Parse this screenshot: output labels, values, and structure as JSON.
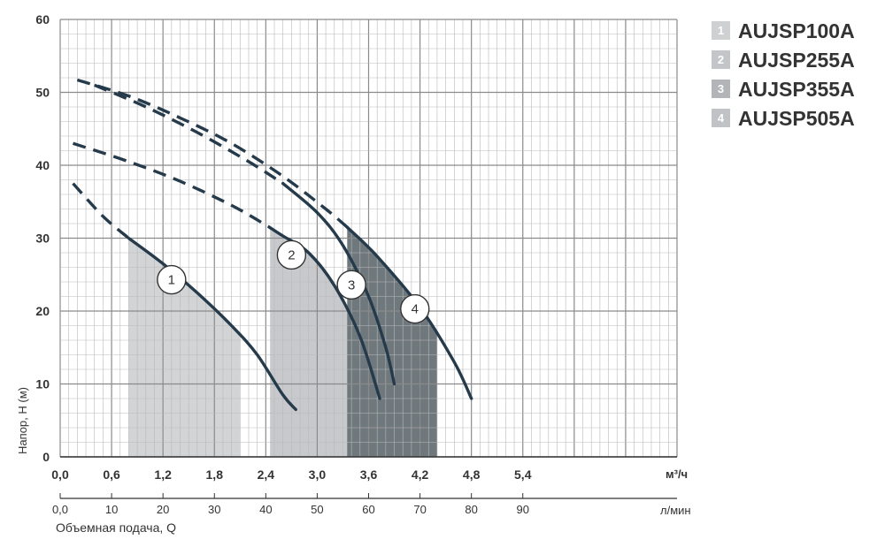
{
  "chart_data": {
    "type": "line",
    "x": {
      "unit": "м³/ч",
      "range": [
        0,
        7.2
      ],
      "ticks": [
        "0,0",
        "0,6",
        "1,2",
        "1,8",
        "2,4",
        "3,0",
        "3,6",
        "4,2",
        "4,8",
        "5,4"
      ]
    },
    "x2": {
      "unit": "л/мин",
      "range": [
        0,
        120
      ],
      "ticks": [
        "0,0",
        "10",
        "20",
        "30",
        "40",
        "50",
        "60",
        "70",
        "80",
        "90"
      ],
      "label": "Объемная подача, Q"
    },
    "y": {
      "label": "Напор, H (м)",
      "range": [
        0,
        60
      ],
      "ticks": [
        "0",
        "10",
        "20",
        "30",
        "40",
        "50",
        "60"
      ]
    },
    "grid": true,
    "legend_position": "right",
    "series": [
      {
        "name": "AUJSP100A",
        "num": "1",
        "points": [
          [
            0.15,
            37.5
          ],
          [
            0.5,
            33.0
          ],
          [
            0.8,
            30.0
          ],
          [
            1.2,
            26.5
          ],
          [
            1.6,
            22.5
          ],
          [
            2.0,
            18.0
          ],
          [
            2.3,
            14.0
          ],
          [
            2.6,
            8.5
          ],
          [
            2.75,
            6.5
          ]
        ],
        "dashed_until": 0.8,
        "band": [
          0.8,
          2.1
        ],
        "band_color": "#d2d4d6"
      },
      {
        "name": "AUJSP255A",
        "num": "2",
        "points": [
          [
            0.15,
            43.0
          ],
          [
            0.8,
            40.5
          ],
          [
            1.4,
            37.8
          ],
          [
            2.0,
            34.5
          ],
          [
            2.4,
            31.8
          ],
          [
            2.6,
            30.3
          ],
          [
            2.9,
            28.0
          ],
          [
            3.2,
            23.5
          ],
          [
            3.5,
            16.5
          ],
          [
            3.73,
            8.0
          ]
        ],
        "dashed_until": 2.45,
        "band": [
          2.45,
          3.75
        ],
        "band_color": "#c8c9cc"
      },
      {
        "name": "AUJSP355A",
        "num": "3",
        "points": [
          [
            0.4,
            51.0
          ],
          [
            1.0,
            48.0
          ],
          [
            1.6,
            44.5
          ],
          [
            2.2,
            40.5
          ],
          [
            2.6,
            37.5
          ],
          [
            3.0,
            33.5
          ],
          [
            3.3,
            29.0
          ],
          [
            3.6,
            22.0
          ],
          [
            3.8,
            15.0
          ],
          [
            3.9,
            10.0
          ]
        ],
        "dashed_until": 2.6,
        "band": [
          3.6,
          3.75
        ],
        "band_color": "#96989c"
      },
      {
        "name": "AUJSP505A",
        "num": "4",
        "points": [
          [
            0.2,
            51.7
          ],
          [
            0.8,
            49.5
          ],
          [
            1.4,
            46.5
          ],
          [
            2.0,
            43.0
          ],
          [
            2.6,
            38.5
          ],
          [
            3.1,
            34.0
          ],
          [
            3.35,
            31.5
          ],
          [
            3.7,
            27.5
          ],
          [
            4.2,
            20.5
          ],
          [
            4.6,
            13.0
          ],
          [
            4.8,
            8.0
          ]
        ],
        "dashed_until": 3.35,
        "band": [
          3.35,
          4.4
        ],
        "band_color": "#6f787d"
      }
    ]
  },
  "legend": [
    {
      "num": "1",
      "label": "AUJSP100A",
      "color": "#cfd0d2"
    },
    {
      "num": "2",
      "label": "AUJSP255A",
      "color": "#c4c5c8"
    },
    {
      "num": "3",
      "label": "AUJSP355A",
      "color": "#b2b4b7"
    },
    {
      "num": "4",
      "label": "AUJSP505A",
      "color": "#c0c2c5"
    }
  ],
  "curve_markers": [
    {
      "num": "1",
      "x": 1.3,
      "y": 24.3
    },
    {
      "num": "2",
      "x": 2.7,
      "y": 27.7
    },
    {
      "num": "3",
      "x": 3.4,
      "y": 23.6
    },
    {
      "num": "4",
      "x": 4.14,
      "y": 20.3
    }
  ]
}
